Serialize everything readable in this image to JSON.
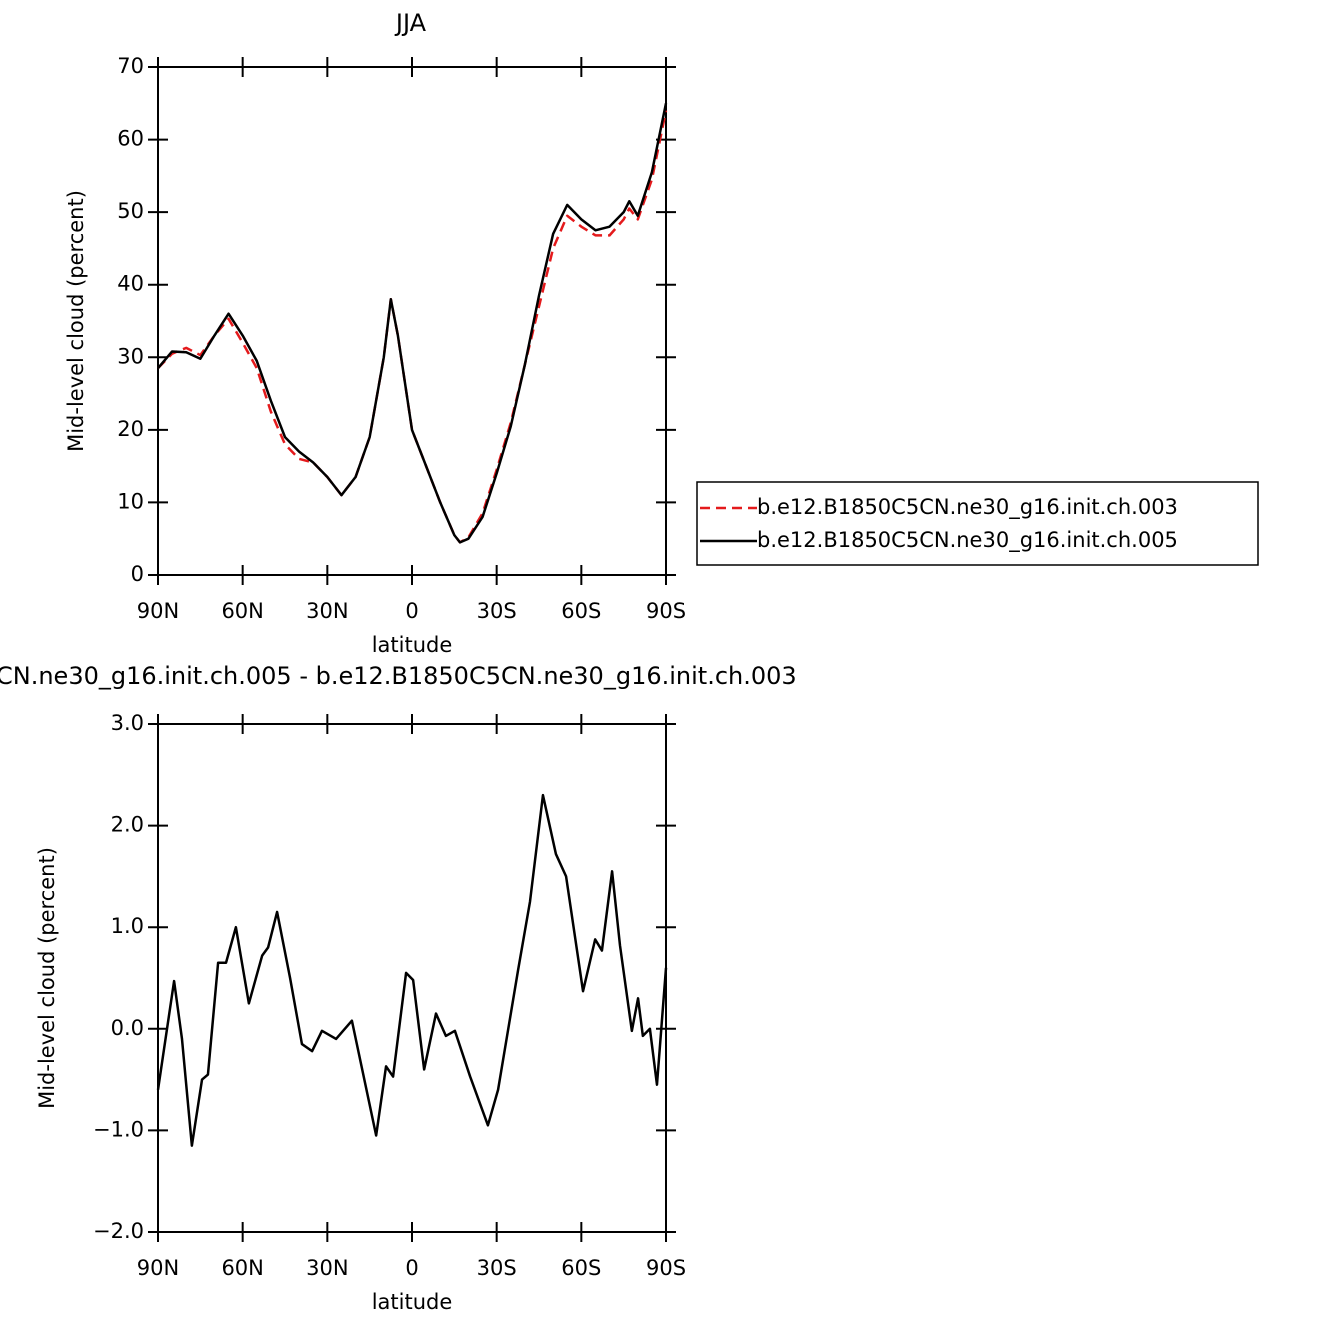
{
  "chart_data": [
    {
      "type": "line",
      "title": "JJA",
      "xlabel": "latitude",
      "ylabel": "Mid-level cloud (percent)",
      "x": [
        90,
        85,
        80,
        75,
        70,
        65,
        60,
        55,
        50,
        45,
        40,
        35,
        30,
        25,
        20,
        15,
        10,
        7.5,
        5,
        0,
        -5,
        -10,
        -15,
        -17,
        -20,
        -25,
        -30,
        -35,
        -40,
        -45,
        -50,
        -55,
        -60,
        -65,
        -70,
        -75,
        -77,
        -80,
        -85,
        -90
      ],
      "series": [
        {
          "name": "b.e12.B1850C5CN.ne30_g16.init.ch.003",
          "color": "#e41a1c",
          "dashed": true,
          "values": [
            28.5,
            30.5,
            31.3,
            30.3,
            33,
            35.3,
            32,
            28.5,
            22.5,
            18,
            16,
            15.5,
            13.5,
            11,
            13.5,
            19,
            30,
            38,
            33,
            20,
            15,
            10,
            5.5,
            4.5,
            5.2,
            8.5,
            14.5,
            21,
            29,
            37,
            45,
            49.5,
            48,
            46.8,
            46.8,
            49,
            50.5,
            49,
            54.5,
            64
          ]
        },
        {
          "name": "b.e12.B1850C5CN.ne30_g16.init.ch.005",
          "color": "#000000",
          "dashed": false,
          "values": [
            28.5,
            30.8,
            30.7,
            29.8,
            33,
            36,
            33,
            29.5,
            24,
            19,
            17,
            15.5,
            13.5,
            11,
            13.5,
            19,
            30,
            38,
            33,
            20,
            15,
            10,
            5.5,
            4.5,
            5,
            8,
            14,
            20.5,
            29,
            38.5,
            47,
            51,
            49,
            47.5,
            48,
            50,
            51.5,
            49.5,
            55.5,
            65
          ]
        }
      ],
      "xlim": [
        90,
        -90
      ],
      "xticks": [
        {
          "value": 90,
          "label": "90N"
        },
        {
          "value": 60,
          "label": "60N"
        },
        {
          "value": 30,
          "label": "30N"
        },
        0,
        {
          "value": -30,
          "label": "30S"
        },
        {
          "value": -60,
          "label": "60S"
        },
        {
          "value": -90,
          "label": "90S"
        }
      ],
      "ylim": [
        0,
        70
      ],
      "yticks": [
        0,
        10,
        20,
        30,
        40,
        50,
        60,
        70
      ],
      "legend": "right"
    },
    {
      "type": "line",
      "title": "CN.ne30_g16.init.ch.005 - b.e12.B1850C5CN.ne30_g16.init.ch.003",
      "xlabel": "latitude",
      "ylabel": "Mid-level cloud (percent)",
      "x": [
        90,
        84.3,
        81.5,
        78,
        74.4,
        72.3,
        68.7,
        65.9,
        62.4,
        57.8,
        53.1,
        51,
        47.8,
        43.2,
        39,
        35.4,
        31.9,
        26.9,
        21.3,
        12.7,
        9.2,
        6.7,
        2.1,
        -0.4,
        -4.3,
        -8.5,
        -12,
        -15.2,
        -20.6,
        -26.9,
        -30.5,
        -37.6,
        -41.8,
        -46.4,
        -51,
        -54.6,
        -60.6,
        -64.9,
        -67.3,
        -70.9,
        -73.7,
        -77.9,
        -80.1,
        -81.8,
        -84.3,
        -86.8,
        -90
      ],
      "values": [
        -0.6,
        0.47,
        -0.1,
        -1.15,
        -0.5,
        -0.45,
        0.65,
        0.65,
        1.0,
        0.25,
        0.72,
        0.8,
        1.15,
        0.5,
        -0.15,
        -0.22,
        -0.02,
        -0.1,
        0.08,
        -1.05,
        -0.37,
        -0.47,
        0.55,
        0.48,
        -0.4,
        0.15,
        -0.07,
        -0.02,
        -0.47,
        -0.95,
        -0.6,
        0.58,
        1.25,
        2.3,
        1.72,
        1.5,
        0.37,
        0.88,
        0.77,
        1.55,
        0.82,
        -0.02,
        0.3,
        -0.07,
        0.0,
        -0.55,
        0.6
      ],
      "color": "#000000",
      "xlim": [
        90,
        -90
      ],
      "xticks": [
        {
          "value": 90,
          "label": "90N"
        },
        {
          "value": 60,
          "label": "60N"
        },
        {
          "value": 30,
          "label": "30N"
        },
        0,
        {
          "value": -30,
          "label": "30S"
        },
        {
          "value": -60,
          "label": "60S"
        },
        {
          "value": -90,
          "label": "90S"
        }
      ],
      "ylim": [
        -2,
        3
      ],
      "yticks": [
        {
          "value": -2,
          "label": "−2.0"
        },
        {
          "value": -1,
          "label": "−1.0"
        },
        {
          "value": 0,
          "label": "0.0"
        },
        {
          "value": 1,
          "label": "1.0"
        },
        {
          "value": 2,
          "label": "2.0"
        },
        {
          "value": 3,
          "label": "3.0"
        }
      ]
    }
  ]
}
